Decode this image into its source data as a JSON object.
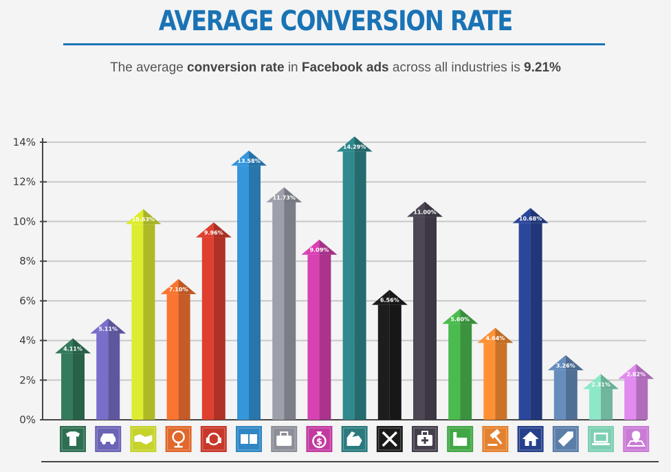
{
  "header": {
    "title": "AVERAGE CONVERSION RATE",
    "subtitle_parts": [
      "The average ",
      "conversion rate",
      " in ",
      "Facebook ads",
      " across all industries is ",
      "9.21%"
    ]
  },
  "chart_data": {
    "type": "bar",
    "title": "AVERAGE CONVERSION RATE",
    "xlabel": "",
    "ylabel": "",
    "ylim": [
      0,
      14
    ],
    "y_ticks": [
      "0%",
      "2%",
      "4%",
      "6%",
      "8%",
      "10%",
      "12%",
      "14%"
    ],
    "grid": true,
    "categories": [
      "apparel",
      "auto",
      "B2B",
      "beauty",
      "consumer services",
      "education",
      "employment & job training",
      "finance & insurance",
      "fitness",
      "home improvement",
      "healthcare",
      "industrial services",
      "legal",
      "real estate",
      "retail",
      "technology",
      "travel & hospitality"
    ],
    "values": [
      4.11,
      5.11,
      10.63,
      7.1,
      9.96,
      13.58,
      11.73,
      9.09,
      14.29,
      6.56,
      11.0,
      5.6,
      4.64,
      10.68,
      3.26,
      2.31,
      2.82
    ],
    "value_labels": [
      "4.11%",
      "5.11%",
      "10.63%",
      "7.10%",
      "9.96%",
      "13.58%",
      "11.73%",
      "9.09%",
      "14.29%",
      "6.56%",
      "11.00%",
      "5.60%",
      "4.64%",
      "10.68%",
      "3.26%",
      "2.31%",
      "2.82%"
    ],
    "colors": [
      "#2e6e52",
      "#6b63b5",
      "#c5d32b",
      "#e0682c",
      "#c8382a",
      "#2f86c4",
      "#8c8f99",
      "#c23aa0",
      "#2a7a7e",
      "#1a1a1a",
      "#453f4c",
      "#42a745",
      "#e4812e",
      "#263f8a",
      "#5b7ea9",
      "#7ecfb2",
      "#c97bd6"
    ],
    "icons": [
      "tshirt-icon",
      "car-icon",
      "handshake-icon",
      "mirror-icon",
      "headset-icon",
      "book-icon",
      "briefcase-icon",
      "money-bag-icon",
      "muscle-arm-icon",
      "tools-icon",
      "first-aid-kit-icon",
      "factory-icon",
      "gavel-icon",
      "house-icon",
      "price-tag-icon",
      "laptop-icon",
      "map-pin-icon"
    ]
  }
}
